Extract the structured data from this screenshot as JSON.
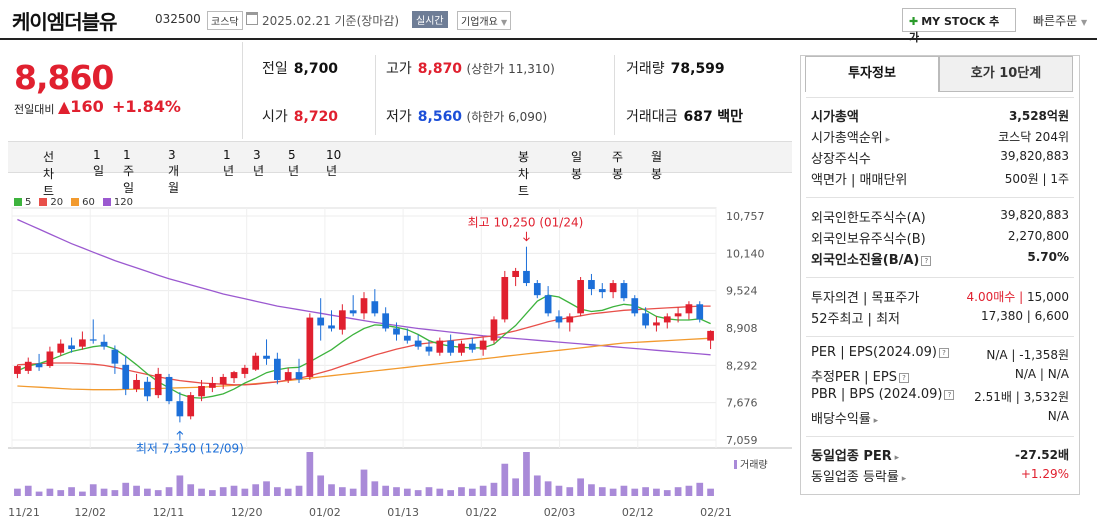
{
  "header": {
    "name": "케이엠더블유",
    "code": "032500",
    "market": "코스닥",
    "date": "2025.02.21 기준(장마감)",
    "live": "실시간",
    "overview": "기업개요",
    "mystock": "MY STOCK 추가",
    "quick": "빠른주문"
  },
  "quote": {
    "price": "8,860",
    "vs_label": "전일대비",
    "change": "▲160",
    "pct": "+1.84%"
  },
  "stats": {
    "prev_l": "전일",
    "prev_v": "8,700",
    "open_l": "시가",
    "open_v": "8,720",
    "high_l": "고가",
    "high_v": "8,870",
    "upper": "(상한가 11,310)",
    "low_l": "저가",
    "low_v": "8,560",
    "lower": "(하한가 6,090)",
    "vol_l": "거래량",
    "vol_v": "78,599",
    "amt_l": "거래대금",
    "amt_v": "687",
    "amt_unit": "백만"
  },
  "toolbar": {
    "line_label": "선차트",
    "line_items": [
      "1일",
      "1주일",
      "3개월",
      "1년",
      "3년",
      "5년",
      "10년"
    ],
    "candle_label": "봉차트",
    "candle_items": [
      "일봉",
      "주봉",
      "월봉"
    ],
    "candle_active": "일봉"
  },
  "chart_data": {
    "type": "candlestick",
    "legend": [
      "5",
      "20",
      "60",
      "120"
    ],
    "legend_colors": [
      "#3db33d",
      "#e8504a",
      "#f29a2e",
      "#9b59d0"
    ],
    "y_ticks": [
      "10,757",
      "10,140",
      "9,524",
      "8,908",
      "8,292",
      "7,676",
      "7,059"
    ],
    "x_ticks": [
      "11/21",
      "12/02",
      "12/11",
      "12/20",
      "01/02",
      "01/13",
      "01/22",
      "02/03",
      "02/12",
      "02/21"
    ],
    "high_label": "최고 10,250 (01/24)",
    "low_label": "최저 7,350 (12/09)",
    "volume_label": "거래량",
    "ohlc": [
      [
        8150,
        8300,
        8080,
        8280
      ],
      [
        8200,
        8420,
        8150,
        8350
      ],
      [
        8320,
        8480,
        8200,
        8260
      ],
      [
        8280,
        8600,
        8250,
        8520
      ],
      [
        8500,
        8720,
        8450,
        8650
      ],
      [
        8620,
        8750,
        8500,
        8560
      ],
      [
        8600,
        8850,
        8550,
        8720
      ],
      [
        8720,
        9050,
        8650,
        8700
      ],
      [
        8680,
        8800,
        8550,
        8600
      ],
      [
        8550,
        8620,
        8150,
        8320
      ],
      [
        8300,
        8450,
        7800,
        7900
      ],
      [
        7900,
        8150,
        7850,
        8050
      ],
      [
        8020,
        8100,
        7700,
        7780
      ],
      [
        7800,
        8250,
        7750,
        8150
      ],
      [
        8100,
        8150,
        7650,
        7700
      ],
      [
        7700,
        7850,
        7350,
        7450
      ],
      [
        7450,
        7850,
        7400,
        7800
      ],
      [
        7780,
        8050,
        7700,
        7950
      ],
      [
        7920,
        8100,
        7850,
        8000
      ],
      [
        7980,
        8150,
        7900,
        8100
      ],
      [
        8080,
        8200,
        8000,
        8180
      ],
      [
        8150,
        8300,
        8080,
        8250
      ],
      [
        8220,
        8500,
        8200,
        8450
      ],
      [
        8450,
        8720,
        8300,
        8400
      ],
      [
        8400,
        8500,
        7980,
        8050
      ],
      [
        8050,
        8250,
        8000,
        8180
      ],
      [
        8180,
        8400,
        8000,
        8060
      ],
      [
        8100,
        9150,
        8050,
        9080
      ],
      [
        9080,
        9400,
        8700,
        8950
      ],
      [
        8950,
        9200,
        8850,
        8900
      ],
      [
        8880,
        9300,
        8800,
        9200
      ],
      [
        9200,
        9450,
        9100,
        9150
      ],
      [
        9150,
        9500,
        9050,
        9400
      ],
      [
        9350,
        9550,
        9100,
        9150
      ],
      [
        9150,
        9250,
        8850,
        8900
      ],
      [
        8900,
        9000,
        8700,
        8800
      ],
      [
        8780,
        8900,
        8650,
        8700
      ],
      [
        8700,
        8800,
        8550,
        8600
      ],
      [
        8600,
        8700,
        8450,
        8520
      ],
      [
        8500,
        8750,
        8450,
        8700
      ],
      [
        8700,
        8800,
        8450,
        8500
      ],
      [
        8500,
        8700,
        8450,
        8650
      ],
      [
        8650,
        8750,
        8500,
        8550
      ],
      [
        8550,
        8750,
        8450,
        8700
      ],
      [
        8700,
        9100,
        8650,
        9050
      ],
      [
        9050,
        9850,
        9000,
        9750
      ],
      [
        9750,
        9900,
        9600,
        9850
      ],
      [
        9850,
        10250,
        9600,
        9650
      ],
      [
        9650,
        9700,
        9400,
        9450
      ],
      [
        9450,
        9600,
        9100,
        9150
      ],
      [
        9100,
        9200,
        8900,
        9000
      ],
      [
        9000,
        9150,
        8850,
        9100
      ],
      [
        9150,
        9750,
        9100,
        9700
      ],
      [
        9700,
        9800,
        9450,
        9550
      ],
      [
        9550,
        9650,
        9400,
        9500
      ],
      [
        9500,
        9700,
        9400,
        9650
      ],
      [
        9650,
        9700,
        9350,
        9400
      ],
      [
        9400,
        9450,
        9100,
        9150
      ],
      [
        9150,
        9250,
        8900,
        8950
      ],
      [
        8950,
        9100,
        8850,
        9000
      ],
      [
        9000,
        9150,
        8900,
        9100
      ],
      [
        9100,
        9250,
        9000,
        9150
      ],
      [
        9150,
        9350,
        9050,
        9300
      ],
      [
        9300,
        9350,
        9000,
        9050
      ],
      [
        8700,
        8870,
        8560,
        8860
      ]
    ],
    "ma5": [
      8200,
      8280,
      8320,
      8380,
      8450,
      8520,
      8560,
      8600,
      8620,
      8560,
      8440,
      8300,
      8150,
      8020,
      7920,
      7820,
      7760,
      7750,
      7780,
      7820,
      7900,
      8000,
      8080,
      8170,
      8220,
      8250,
      8260,
      8350,
      8450,
      8550,
      8680,
      8800,
      8900,
      8960,
      8950,
      8920,
      8880,
      8800,
      8700,
      8640,
      8610,
      8590,
      8580,
      8580,
      8640,
      8800,
      8950,
      9150,
      9350,
      9450,
      9420,
      9320,
      9220,
      9180,
      9200,
      9260,
      9300,
      9280,
      9200,
      9100,
      9060,
      9040,
      9040,
      9060,
      8980
    ],
    "ma20": [
      8300,
      8310,
      8320,
      8330,
      8330,
      8330,
      8320,
      8310,
      8290,
      8260,
      8220,
      8180,
      8140,
      8100,
      8070,
      8040,
      8020,
      8000,
      7990,
      7980,
      7970,
      7970,
      7980,
      8000,
      8020,
      8050,
      8080,
      8120,
      8170,
      8220,
      8280,
      8340,
      8400,
      8460,
      8510,
      8560,
      8600,
      8640,
      8660,
      8680,
      8700,
      8720,
      8740,
      8760,
      8780,
      8820,
      8860,
      8910,
      8960,
      9010,
      9050,
      9080,
      9110,
      9140,
      9160,
      9180,
      9200,
      9210,
      9220,
      9230,
      9240,
      9250,
      9260,
      9270,
      9270
    ],
    "ma60": [
      7950,
      7940,
      7930,
      7920,
      7910,
      7900,
      7895,
      7890,
      7890,
      7890,
      7895,
      7900,
      7905,
      7910,
      7915,
      7920,
      7925,
      7930,
      7940,
      7950,
      7960,
      7975,
      7990,
      8005,
      8020,
      8040,
      8060,
      8080,
      8100,
      8120,
      8140,
      8160,
      8180,
      8200,
      8220,
      8240,
      8260,
      8280,
      8300,
      8320,
      8340,
      8360,
      8380,
      8400,
      8420,
      8440,
      8460,
      8480,
      8500,
      8520,
      8540,
      8560,
      8580,
      8600,
      8620,
      8640,
      8660,
      8670,
      8680,
      8690,
      8700,
      8710,
      8720,
      8730,
      8740
    ],
    "ma120": [
      10700,
      10620,
      10540,
      10460,
      10380,
      10300,
      10230,
      10160,
      10090,
      10020,
      9960,
      9900,
      9840,
      9780,
      9720,
      9670,
      9620,
      9570,
      9520,
      9470,
      9430,
      9390,
      9350,
      9310,
      9270,
      9240,
      9210,
      9180,
      9150,
      9120,
      9090,
      9060,
      9030,
      9000,
      8975,
      8950,
      8925,
      8900,
      8880,
      8860,
      8840,
      8820,
      8800,
      8780,
      8765,
      8750,
      8735,
      8720,
      8705,
      8690,
      8675,
      8660,
      8645,
      8630,
      8615,
      8600,
      8585,
      8570,
      8555,
      8540,
      8525,
      8510,
      8495,
      8480,
      8465
    ],
    "volume": [
      5,
      7,
      3,
      5,
      4,
      6,
      3,
      8,
      5,
      4,
      9,
      7,
      5,
      4,
      6,
      14,
      8,
      5,
      4,
      6,
      7,
      5,
      8,
      10,
      6,
      5,
      7,
      30,
      14,
      8,
      6,
      5,
      18,
      10,
      7,
      6,
      5,
      4,
      6,
      5,
      4,
      6,
      5,
      7,
      9,
      22,
      12,
      30,
      14,
      10,
      7,
      6,
      12,
      8,
      6,
      5,
      7,
      5,
      6,
      5,
      4,
      6,
      7,
      9,
      5
    ],
    "ylim": [
      7059,
      10757
    ]
  },
  "invest": {
    "tab1": "투자정보",
    "tab2": "호가 10단계",
    "rows": [
      {
        "k": "시가총액",
        "v": "3,528억원",
        "bold": true
      },
      {
        "k": "시가총액순위",
        "v": "코스닥 204위"
      },
      {
        "k": "상장주식수",
        "v": "39,820,883"
      },
      {
        "k": "액면가 | 매매단위",
        "v": "500원 | 1주"
      },
      {
        "k": "외국인한도주식수(A)",
        "v": "39,820,883"
      },
      {
        "k": "외국인보유주식수(B)",
        "v": "2,270,800"
      },
      {
        "k": "외국인소진율(B/A)",
        "v": "5.70%",
        "bold": true
      },
      {
        "k": "투자의견 | 목표주가",
        "v": "15,000",
        "v_red": "4.00매수 | "
      },
      {
        "k": "52주최고 | 최저",
        "v": "17,380 | 6,600"
      },
      {
        "k": "PER | EPS(2024.09)",
        "v": "N/A | -1,358원"
      },
      {
        "k": "추정PER | EPS",
        "v": "N/A | N/A"
      },
      {
        "k": "PBR | BPS (2024.09)",
        "v": "2.51배 | 3,532원"
      },
      {
        "k": "배당수익률",
        "v": "N/A"
      },
      {
        "k": "동일업종 PER",
        "v": "-27.52배",
        "bold": true
      },
      {
        "k": "동일업종 등락률",
        "v": "+1.29%",
        "red": true
      }
    ]
  }
}
